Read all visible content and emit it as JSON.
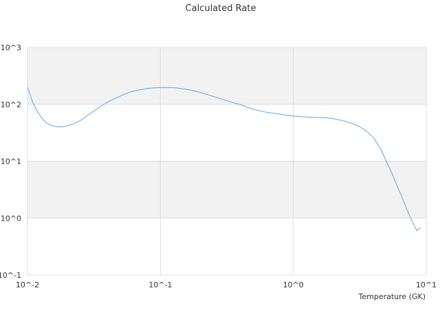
{
  "chart_data": {
    "type": "line",
    "title": "Calculated Rate",
    "xlabel": "Temperature (GK)",
    "ylabel": "",
    "x_scale": "log",
    "y_scale": "log",
    "xlim": [
      0.01,
      10
    ],
    "ylim": [
      0.1,
      1000
    ],
    "x_ticks": [
      {
        "value": 0.01,
        "label": "10^-2"
      },
      {
        "value": 0.1,
        "label": "10^-1"
      },
      {
        "value": 1,
        "label": "10^0"
      },
      {
        "value": 10,
        "label": "10^1"
      }
    ],
    "y_ticks": [
      {
        "value": 0.1,
        "label": "10^-1"
      },
      {
        "value": 1,
        "label": "10^0"
      },
      {
        "value": 10,
        "label": "10^1"
      },
      {
        "value": 100,
        "label": "10^2"
      },
      {
        "value": 1000,
        "label": "10^3"
      }
    ],
    "grid": true,
    "alternating_bands": true,
    "legend": "none",
    "colors": {
      "line": "#5aa6e8",
      "band": "#f2f2f2",
      "grid": "#dddddd",
      "text": "#333333"
    },
    "series": [
      {
        "x": [
          0.01,
          0.011,
          0.012,
          0.013,
          0.014,
          0.015,
          0.016,
          0.018,
          0.02,
          0.022,
          0.025,
          0.028,
          0.032,
          0.036,
          0.04,
          0.045,
          0.05,
          0.055,
          0.06,
          0.07,
          0.08,
          0.09,
          0.1,
          0.11,
          0.12,
          0.13,
          0.14,
          0.16,
          0.18,
          0.2,
          0.25,
          0.3,
          0.35,
          0.4,
          0.45,
          0.5,
          0.6,
          0.7,
          0.8,
          0.9,
          1.0,
          1.25,
          1.5,
          1.75,
          2.0,
          2.5,
          3.0,
          3.5,
          4.0,
          4.5,
          5.0,
          5.5,
          6.0,
          6.5,
          7.0,
          7.5,
          8.0,
          8.5,
          9.0
        ],
        "y": [
          200,
          105,
          72,
          55,
          46,
          43,
          41,
          40,
          42,
          45,
          52,
          63,
          78,
          94,
          109,
          125,
          140,
          154,
          166,
          180,
          190,
          195,
          197,
          198,
          197,
          195,
          191,
          182,
          173,
          162,
          138,
          120,
          107,
          99,
          89,
          82,
          74,
          70,
          67,
          64,
          62,
          60,
          59,
          58,
          56,
          50,
          43,
          35,
          26,
          17,
          10,
          6.3,
          3.8,
          2.5,
          1.6,
          1.1,
          0.8,
          0.6,
          0.68
        ]
      }
    ]
  }
}
